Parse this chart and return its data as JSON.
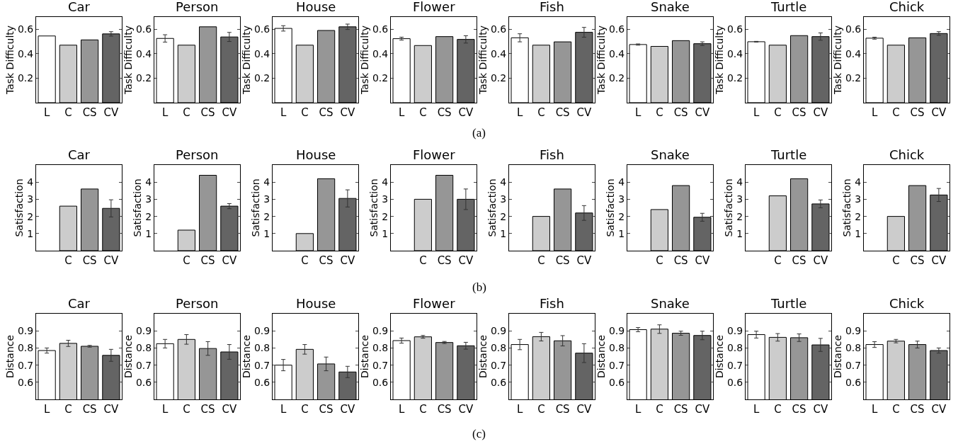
{
  "chart_data": [
    {
      "type": "bar",
      "title": "Car",
      "ylabel": "Task Difficulty",
      "categories": [
        "L",
        "C",
        "CS",
        "CV"
      ],
      "values": [
        0.545,
        0.47,
        0.513,
        0.562
      ],
      "colors": [
        "#ffffff",
        "#cccccc",
        "#969696",
        "#646464"
      ],
      "errors": [
        null,
        null,
        null,
        0.018
      ],
      "ylim": [
        0,
        0.7
      ],
      "yticks": [
        0.2,
        0.4,
        0.6
      ],
      "annotations": [
        "(a)"
      ]
    },
    {
      "type": "bar",
      "title": "Person",
      "ylabel": "Task Difficulty",
      "categories": [
        "L",
        "C",
        "CS",
        "CV"
      ],
      "values": [
        0.525,
        0.47,
        0.62,
        0.537
      ],
      "colors": [
        "#ffffff",
        "#cccccc",
        "#969696",
        "#646464"
      ],
      "errors": [
        0.03,
        null,
        null,
        0.037
      ],
      "ylim": [
        0,
        0.7
      ],
      "yticks": [
        0.2,
        0.4,
        0.6
      ]
    },
    {
      "type": "bar",
      "title": "House",
      "ylabel": "Task Difficulty",
      "categories": [
        "L",
        "C",
        "CS",
        "CV"
      ],
      "values": [
        0.607,
        0.47,
        0.59,
        0.62
      ],
      "colors": [
        "#ffffff",
        "#cccccc",
        "#969696",
        "#646464"
      ],
      "errors": [
        0.022,
        null,
        null,
        0.022
      ],
      "ylim": [
        0,
        0.7
      ],
      "yticks": [
        0.2,
        0.4,
        0.6
      ]
    },
    {
      "type": "bar",
      "title": "Flower",
      "ylabel": "Task Difficulty",
      "categories": [
        "L",
        "C",
        "CS",
        "CV"
      ],
      "values": [
        0.523,
        0.467,
        0.54,
        0.517
      ],
      "colors": [
        "#ffffff",
        "#cccccc",
        "#969696",
        "#646464"
      ],
      "errors": [
        0.012,
        null,
        null,
        0.03
      ],
      "ylim": [
        0,
        0.7
      ],
      "yticks": [
        0.2,
        0.4,
        0.6
      ]
    },
    {
      "type": "bar",
      "title": "Fish",
      "ylabel": "Task Difficulty",
      "categories": [
        "L",
        "C",
        "CS",
        "CV"
      ],
      "values": [
        0.53,
        0.47,
        0.497,
        0.575
      ],
      "colors": [
        "#ffffff",
        "#cccccc",
        "#969696",
        "#646464"
      ],
      "errors": [
        0.033,
        null,
        null,
        0.04
      ],
      "ylim": [
        0,
        0.7
      ],
      "yticks": [
        0.2,
        0.4,
        0.6
      ]
    },
    {
      "type": "bar",
      "title": "Snake",
      "ylabel": "Task Difficulty",
      "categories": [
        "L",
        "C",
        "CS",
        "CV"
      ],
      "values": [
        0.475,
        0.46,
        0.507,
        0.482
      ],
      "colors": [
        "#ffffff",
        "#cccccc",
        "#969696",
        "#646464"
      ],
      "errors": [
        0.005,
        null,
        null,
        0.015
      ],
      "ylim": [
        0,
        0.7
      ],
      "yticks": [
        0.2,
        0.4,
        0.6
      ]
    },
    {
      "type": "bar",
      "title": "Turtle",
      "ylabel": "Task Difficulty",
      "categories": [
        "L",
        "C",
        "CS",
        "CV"
      ],
      "values": [
        0.498,
        0.47,
        0.548,
        0.54
      ],
      "colors": [
        "#ffffff",
        "#cccccc",
        "#969696",
        "#646464"
      ],
      "errors": [
        0.003,
        null,
        null,
        0.03
      ],
      "ylim": [
        0,
        0.7
      ],
      "yticks": [
        0.2,
        0.4,
        0.6
      ]
    },
    {
      "type": "bar",
      "title": "Chick",
      "ylabel": "Task Difficulty",
      "categories": [
        "L",
        "C",
        "CS",
        "CV"
      ],
      "values": [
        0.527,
        0.47,
        0.53,
        0.565
      ],
      "colors": [
        "#ffffff",
        "#cccccc",
        "#969696",
        "#646464"
      ],
      "errors": [
        0.008,
        null,
        null,
        0.015
      ],
      "ylim": [
        0,
        0.7
      ],
      "yticks": [
        0.2,
        0.4,
        0.6
      ]
    },
    {
      "type": "bar",
      "title": "Car",
      "ylabel": "Satisfaction",
      "categories": [
        null,
        "C",
        "CS",
        "CV"
      ],
      "values": [
        null,
        2.6,
        3.6,
        2.47
      ],
      "colors": [
        "#ffffff",
        "#cccccc",
        "#969696",
        "#646464"
      ],
      "errors": [
        null,
        null,
        null,
        0.5
      ],
      "ylim": [
        0,
        5
      ],
      "yticks": [
        1,
        2,
        3,
        4
      ],
      "annotations": [
        "(b)"
      ]
    },
    {
      "type": "bar",
      "title": "Person",
      "ylabel": "Satisfaction",
      "categories": [
        null,
        "C",
        "CS",
        "CV"
      ],
      "values": [
        null,
        1.2,
        4.4,
        2.6
      ],
      "colors": [
        "#ffffff",
        "#cccccc",
        "#969696",
        "#646464"
      ],
      "errors": [
        null,
        null,
        null,
        0.15
      ],
      "ylim": [
        0,
        5
      ],
      "yticks": [
        1,
        2,
        3,
        4
      ]
    },
    {
      "type": "bar",
      "title": "House",
      "ylabel": "Satisfaction",
      "categories": [
        null,
        "C",
        "CS",
        "CV"
      ],
      "values": [
        null,
        1.0,
        4.2,
        3.05
      ],
      "colors": [
        "#ffffff",
        "#cccccc",
        "#969696",
        "#646464"
      ],
      "errors": [
        null,
        null,
        null,
        0.5
      ],
      "ylim": [
        0,
        5
      ],
      "yticks": [
        1,
        2,
        3,
        4
      ]
    },
    {
      "type": "bar",
      "title": "Flower",
      "ylabel": "Satisfaction",
      "categories": [
        null,
        "C",
        "CS",
        "CV"
      ],
      "values": [
        null,
        3.0,
        4.4,
        3.0
      ],
      "colors": [
        "#ffffff",
        "#cccccc",
        "#969696",
        "#646464"
      ],
      "errors": [
        null,
        null,
        null,
        0.6
      ],
      "ylim": [
        0,
        5
      ],
      "yticks": [
        1,
        2,
        3,
        4
      ]
    },
    {
      "type": "bar",
      "title": "Fish",
      "ylabel": "Satisfaction",
      "categories": [
        null,
        "C",
        "CS",
        "CV"
      ],
      "values": [
        null,
        2.0,
        3.6,
        2.2
      ],
      "colors": [
        "#ffffff",
        "#cccccc",
        "#969696",
        "#646464"
      ],
      "errors": [
        null,
        null,
        null,
        0.43
      ],
      "ylim": [
        0,
        5
      ],
      "yticks": [
        1,
        2,
        3,
        4
      ]
    },
    {
      "type": "bar",
      "title": "Snake",
      "ylabel": "Satisfaction",
      "categories": [
        null,
        "C",
        "CS",
        "CV"
      ],
      "values": [
        null,
        2.4,
        3.8,
        1.95
      ],
      "colors": [
        "#ffffff",
        "#cccccc",
        "#969696",
        "#646464"
      ],
      "errors": [
        null,
        null,
        null,
        0.23
      ],
      "ylim": [
        0,
        5
      ],
      "yticks": [
        1,
        2,
        3,
        4
      ]
    },
    {
      "type": "bar",
      "title": "Turtle",
      "ylabel": "Satisfaction",
      "categories": [
        null,
        "C",
        "CS",
        "CV"
      ],
      "values": [
        null,
        3.2,
        4.2,
        2.73
      ],
      "colors": [
        "#ffffff",
        "#cccccc",
        "#969696",
        "#646464"
      ],
      "errors": [
        null,
        null,
        null,
        0.23
      ],
      "ylim": [
        0,
        5
      ],
      "yticks": [
        1,
        2,
        3,
        4
      ]
    },
    {
      "type": "bar",
      "title": "Chick",
      "ylabel": "Satisfaction",
      "categories": [
        null,
        "C",
        "CS",
        "CV"
      ],
      "values": [
        null,
        2.0,
        3.8,
        3.25
      ],
      "colors": [
        "#ffffff",
        "#cccccc",
        "#969696",
        "#646464"
      ],
      "errors": [
        null,
        null,
        null,
        0.38
      ],
      "ylim": [
        0,
        5
      ],
      "yticks": [
        1,
        2,
        3,
        4
      ]
    },
    {
      "type": "bar",
      "title": "Car",
      "ylabel": "Distance",
      "categories": [
        "L",
        "C",
        "CS",
        "CV"
      ],
      "values": [
        0.785,
        0.827,
        0.81,
        0.757
      ],
      "colors": [
        "#ffffff",
        "#cccccc",
        "#969696",
        "#646464"
      ],
      "errors": [
        0.015,
        0.018,
        0.005,
        0.035
      ],
      "ylim": [
        0.5,
        1.0
      ],
      "yticks": [
        0.6,
        0.7,
        0.8,
        0.9
      ],
      "annotations": [
        "(c)"
      ]
    },
    {
      "type": "bar",
      "title": "Person",
      "ylabel": "Distance",
      "categories": [
        "L",
        "C",
        "CS",
        "CV"
      ],
      "values": [
        0.825,
        0.85,
        0.797,
        0.777
      ],
      "colors": [
        "#ffffff",
        "#cccccc",
        "#969696",
        "#646464"
      ],
      "errors": [
        0.025,
        0.028,
        0.04,
        0.043
      ],
      "ylim": [
        0.5,
        1.0
      ],
      "yticks": [
        0.6,
        0.7,
        0.8,
        0.9
      ]
    },
    {
      "type": "bar",
      "title": "House",
      "ylabel": "Distance",
      "categories": [
        "L",
        "C",
        "CS",
        "CV"
      ],
      "values": [
        0.7,
        0.792,
        0.707,
        0.66
      ],
      "colors": [
        "#ffffff",
        "#cccccc",
        "#969696",
        "#646464"
      ],
      "errors": [
        0.033,
        0.028,
        0.04,
        0.033
      ],
      "ylim": [
        0.5,
        1.0
      ],
      "yticks": [
        0.6,
        0.7,
        0.8,
        0.9
      ]
    },
    {
      "type": "bar",
      "title": "Flower",
      "ylabel": "Distance",
      "categories": [
        "L",
        "C",
        "CS",
        "CV"
      ],
      "values": [
        0.843,
        0.865,
        0.832,
        0.813
      ],
      "colors": [
        "#ffffff",
        "#cccccc",
        "#969696",
        "#646464"
      ],
      "errors": [
        0.015,
        0.008,
        0.006,
        0.02
      ],
      "ylim": [
        0.5,
        1.0
      ],
      "yticks": [
        0.6,
        0.7,
        0.8,
        0.9
      ]
    },
    {
      "type": "bar",
      "title": "Fish",
      "ylabel": "Distance",
      "categories": [
        "L",
        "C",
        "CS",
        "CV"
      ],
      "values": [
        0.82,
        0.866,
        0.842,
        0.77
      ],
      "colors": [
        "#ffffff",
        "#cccccc",
        "#969696",
        "#646464"
      ],
      "errors": [
        0.03,
        0.025,
        0.03,
        0.055
      ],
      "ylim": [
        0.5,
        1.0
      ],
      "yticks": [
        0.6,
        0.7,
        0.8,
        0.9
      ]
    },
    {
      "type": "bar",
      "title": "Snake",
      "ylabel": "Distance",
      "categories": [
        "L",
        "C",
        "CS",
        "CV"
      ],
      "values": [
        0.907,
        0.91,
        0.886,
        0.873
      ],
      "colors": [
        "#ffffff",
        "#cccccc",
        "#969696",
        "#646464"
      ],
      "errors": [
        0.012,
        0.025,
        0.012,
        0.025
      ],
      "ylim": [
        0.5,
        1.0
      ],
      "yticks": [
        0.6,
        0.7,
        0.8,
        0.9
      ]
    },
    {
      "type": "bar",
      "title": "Turtle",
      "ylabel": "Distance",
      "categories": [
        "L",
        "C",
        "CS",
        "CV"
      ],
      "values": [
        0.878,
        0.862,
        0.86,
        0.818
      ],
      "colors": [
        "#ffffff",
        "#cccccc",
        "#969696",
        "#646464"
      ],
      "errors": [
        0.02,
        0.022,
        0.022,
        0.038
      ],
      "ylim": [
        0.5,
        1.0
      ],
      "yticks": [
        0.6,
        0.7,
        0.8,
        0.9
      ]
    },
    {
      "type": "bar",
      "title": "Chick",
      "ylabel": "Distance",
      "categories": [
        "L",
        "C",
        "CS",
        "CV"
      ],
      "values": [
        0.82,
        0.84,
        0.82,
        0.785
      ],
      "colors": [
        "#ffffff",
        "#cccccc",
        "#969696",
        "#646464"
      ],
      "errors": [
        0.017,
        0.01,
        0.02,
        0.015
      ],
      "ylim": [
        0.5,
        1.0
      ],
      "yticks": [
        0.6,
        0.7,
        0.8,
        0.9
      ]
    }
  ]
}
